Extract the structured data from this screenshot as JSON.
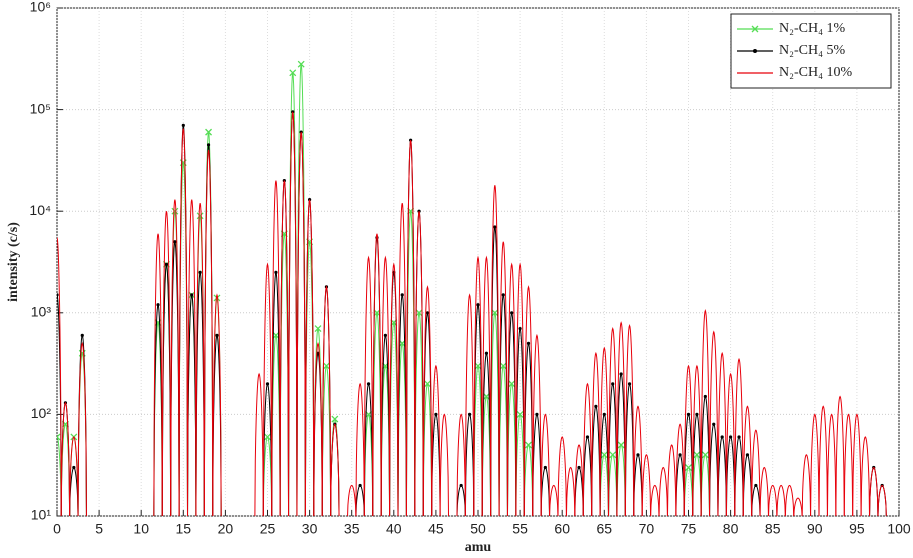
{
  "chart_data": {
    "type": "spectrum",
    "xlabel": "amu",
    "ylabel": "intensity (c/s)",
    "xlim": [
      0,
      100
    ],
    "xticks": [
      0,
      5,
      10,
      15,
      20,
      25,
      30,
      35,
      40,
      45,
      50,
      55,
      60,
      65,
      70,
      75,
      80,
      85,
      90,
      95,
      100
    ],
    "ylim": [
      10,
      1000000
    ],
    "log_y": true,
    "grid": true,
    "legend": "top-right",
    "yticks": [
      {
        "value": 10,
        "label": "10¹"
      },
      {
        "value": 100,
        "label": "10²"
      },
      {
        "value": 1000,
        "label": "10³"
      },
      {
        "value": 10000,
        "label": "10⁴"
      },
      {
        "value": 100000,
        "label": "10⁵"
      },
      {
        "value": 1000000,
        "label": "10⁶"
      }
    ],
    "x": [
      0,
      1,
      2,
      3,
      4,
      5,
      6,
      7,
      8,
      9,
      10,
      11,
      12,
      13,
      14,
      15,
      16,
      17,
      18,
      19,
      20,
      21,
      22,
      23,
      24,
      25,
      26,
      27,
      28,
      29,
      30,
      31,
      32,
      33,
      34,
      35,
      36,
      37,
      38,
      39,
      40,
      41,
      42,
      43,
      44,
      45,
      46,
      47,
      48,
      49,
      50,
      51,
      52,
      53,
      54,
      55,
      56,
      57,
      58,
      59,
      60,
      61,
      62,
      63,
      64,
      65,
      66,
      67,
      68,
      69,
      70,
      71,
      72,
      73,
      74,
      75,
      76,
      77,
      78,
      79,
      80,
      81,
      82,
      83,
      84,
      85,
      86,
      87,
      88,
      89,
      90,
      91,
      92,
      93,
      94,
      95,
      96,
      97,
      98
    ],
    "series": [
      {
        "name": "N₂-CH₄ 1%",
        "color": "#55dd55",
        "marker": "x",
        "values": [
          60,
          80,
          60,
          400,
          null,
          null,
          null,
          null,
          null,
          null,
          null,
          null,
          800,
          3000,
          10000,
          30000,
          1500,
          9000,
          60000,
          1400,
          null,
          null,
          null,
          null,
          null,
          60,
          600,
          6000,
          230000,
          280000,
          5000,
          700,
          300,
          90,
          null,
          null,
          null,
          100,
          1000,
          300,
          800,
          500,
          10000,
          1000,
          200,
          null,
          null,
          null,
          null,
          null,
          300,
          150,
          1000,
          300,
          200,
          100,
          50,
          null,
          null,
          null,
          null,
          null,
          null,
          null,
          null,
          40,
          40,
          50,
          null,
          null,
          null,
          null,
          null,
          null,
          null,
          30,
          40,
          40,
          null,
          null,
          null,
          null,
          null,
          null,
          null,
          null,
          null,
          null,
          null,
          null,
          null,
          null,
          null,
          null,
          null,
          null,
          null,
          null,
          null
        ]
      },
      {
        "name": "N₂-CH₄ 5%",
        "color": "#000000",
        "marker": "dot",
        "values": [
          1500,
          130,
          30,
          600,
          null,
          null,
          null,
          null,
          null,
          null,
          null,
          null,
          1200,
          3000,
          5000,
          70000,
          1500,
          2500,
          45000,
          600,
          null,
          null,
          null,
          null,
          null,
          200,
          2500,
          20000,
          95000,
          60000,
          13000,
          400,
          1800,
          80,
          null,
          null,
          20,
          200,
          5500,
          600,
          2500,
          1500,
          50000,
          10000,
          1000,
          100,
          null,
          null,
          20,
          100,
          1200,
          400,
          7000,
          1500,
          1000,
          700,
          500,
          100,
          30,
          null,
          null,
          null,
          30,
          60,
          120,
          100,
          200,
          250,
          200,
          40,
          null,
          null,
          null,
          null,
          40,
          100,
          100,
          150,
          80,
          60,
          60,
          60,
          40,
          20,
          null,
          null,
          null,
          null,
          null,
          null,
          null,
          null,
          null,
          null,
          null,
          null,
          null,
          30,
          20
        ]
      },
      {
        "name": "N₂-CH₄ 10%",
        "color": "#e8000b",
        "marker": "none",
        "values": [
          5500,
          130,
          60,
          500,
          null,
          null,
          null,
          null,
          null,
          null,
          null,
          null,
          6000,
          10000,
          13000,
          65000,
          13000,
          12000,
          40000,
          1500,
          null,
          null,
          null,
          null,
          250,
          3000,
          20000,
          20000,
          95000,
          60000,
          13000,
          500,
          1800,
          80,
          null,
          20,
          200,
          3500,
          6000,
          3500,
          3000,
          12000,
          50000,
          10000,
          1800,
          300,
          100,
          null,
          100,
          1500,
          3500,
          3500,
          18000,
          5000,
          3000,
          3000,
          1800,
          600,
          100,
          20,
          60,
          30,
          50,
          200,
          400,
          450,
          700,
          800,
          750,
          120,
          40,
          20,
          30,
          50,
          80,
          300,
          300,
          1050,
          650,
          400,
          250,
          350,
          120,
          70,
          30,
          20,
          20,
          20,
          15,
          40,
          100,
          120,
          100,
          150,
          100,
          100,
          60,
          30,
          20
        ]
      }
    ]
  }
}
